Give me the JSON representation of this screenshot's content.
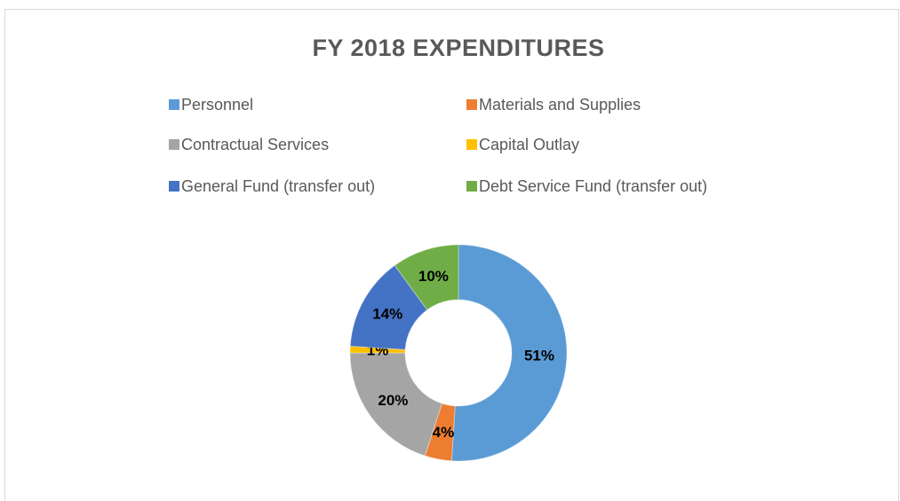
{
  "chart_data": {
    "type": "donut",
    "title": "FY 2018 EXPENDITURES",
    "categories": [
      "Personnel",
      "Materials and Supplies",
      "Contractual Services",
      "Capital Outlay",
      "General Fund (transfer out)",
      "Debt Service Fund (transfer out)"
    ],
    "values": [
      51,
      4,
      20,
      1,
      14,
      10
    ],
    "value_labels": [
      "51%",
      "4%",
      "20%",
      "1%",
      "14%",
      "10%"
    ],
    "colors": [
      "#5b9bd5",
      "#ed7d31",
      "#a5a5a5",
      "#ffc000",
      "#4472c4",
      "#70ad47"
    ],
    "legend": "top"
  }
}
